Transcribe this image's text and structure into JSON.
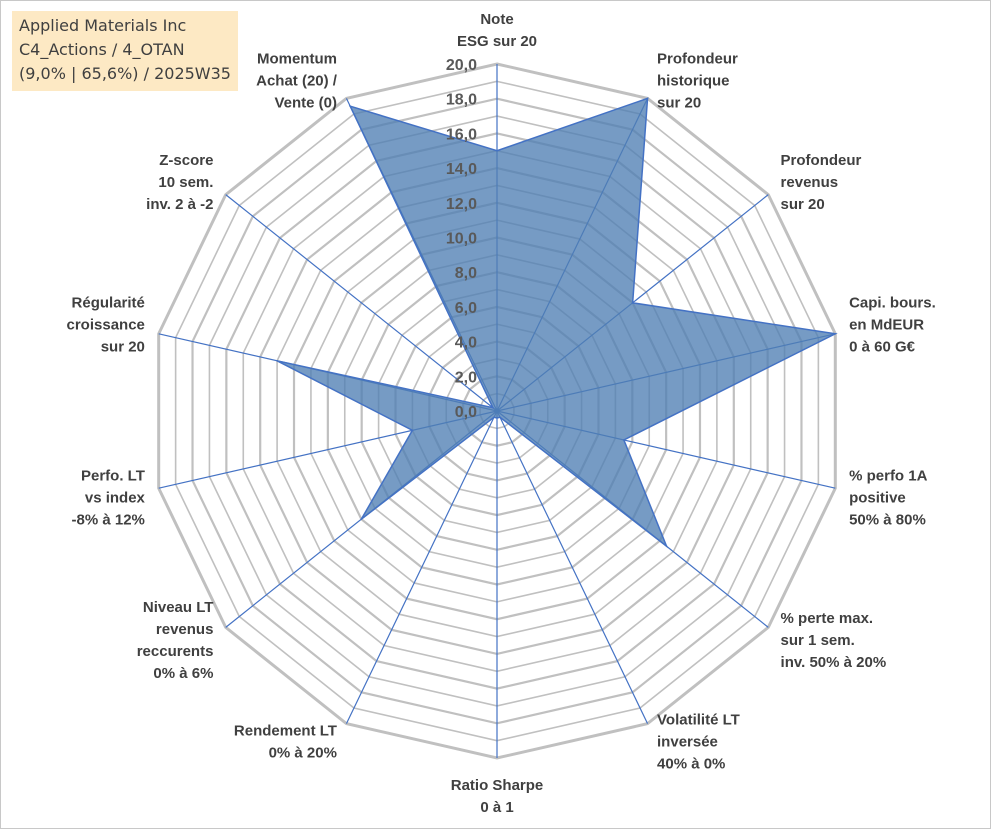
{
  "title_box": {
    "line1": "Applied Materials Inc",
    "line2": "C4_Actions / 4_OTAN",
    "line3": "(9,0% | 65,6%) / 2025W35"
  },
  "chart_data": {
    "type": "radar",
    "title": "",
    "range": [
      0,
      20
    ],
    "ticks": [
      "0,0",
      "2,0",
      "4,0",
      "6,0",
      "8,0",
      "10,0",
      "12,0",
      "14,0",
      "16,0",
      "18,0",
      "20,0"
    ],
    "grid": true,
    "colors": {
      "fill": "#4f7fb4",
      "line": "#4472c4",
      "grid": "#c0c0c0",
      "spoke": "#4472c4"
    },
    "axes": [
      {
        "label": [
          "Note",
          "ESG sur 20"
        ],
        "value": 15.0
      },
      {
        "label": [
          "Profondeur",
          "historique",
          "sur 20"
        ],
        "value": 20.0
      },
      {
        "label": [
          "Profondeur",
          "revenus",
          "sur 20"
        ],
        "value": 10.0
      },
      {
        "label": [
          "Capi. bours.",
          "en MdEUR",
          "0 à 60 G€"
        ],
        "value": 20.0
      },
      {
        "label": [
          "% perfo 1A",
          "positive",
          "50% à 80%"
        ],
        "value": 7.5
      },
      {
        "label": [
          "% perte max.",
          "sur 1 sem.",
          "inv. 50% à 20%"
        ],
        "value": 12.5
      },
      {
        "label": [
          "Volatilité LT",
          "inversée",
          "40% à 0%"
        ],
        "value": 0.4
      },
      {
        "label": [
          "Ratio Sharpe",
          "0 à 1"
        ],
        "value": 0.4
      },
      {
        "label": [
          "Rendement LT",
          "0% à 20%"
        ],
        "value": 0.4
      },
      {
        "label": [
          "Niveau LT",
          "revenus",
          "reccurents",
          "0% à 6%"
        ],
        "value": 10.0
      },
      {
        "label": [
          "Perfo. LT",
          "vs index",
          "-8% à 12%"
        ],
        "value": 5.0
      },
      {
        "label": [
          "Régularité",
          "croissance",
          "sur 20"
        ],
        "value": 13.0
      },
      {
        "label": [
          "Z-score",
          "10 sem.",
          "inv. 2 à -2"
        ],
        "value": 0.3
      },
      {
        "label": [
          "Momentum",
          "Achat (20) /",
          "Vente (0)"
        ],
        "value": 19.5
      }
    ]
  }
}
